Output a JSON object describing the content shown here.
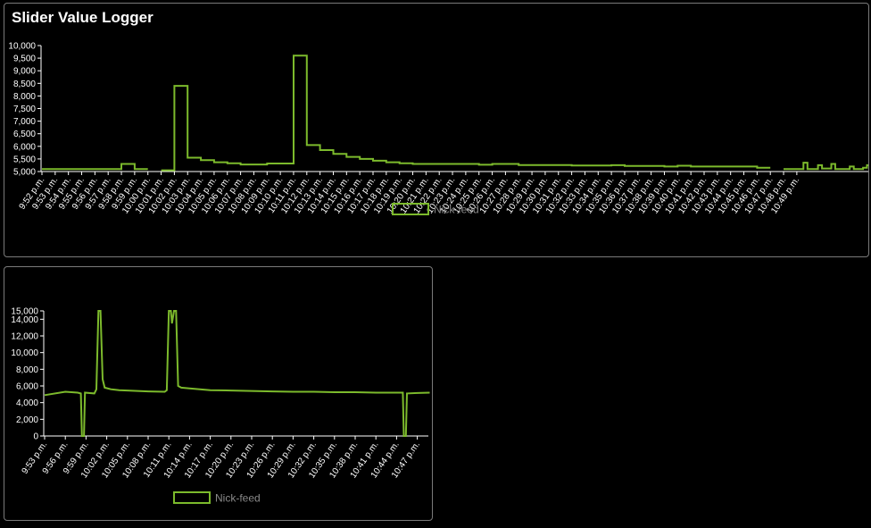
{
  "app_title": "Slider Value Logger",
  "colors": {
    "series": "#7cba2c",
    "axis": "#ffffff",
    "background": "#000000",
    "border": "#7a7a7a",
    "legend_text": "#8a8a8a"
  },
  "chart_data": [
    {
      "type": "line",
      "step": true,
      "legend_position": "bottom",
      "grid": false,
      "ylim": [
        5000,
        10000
      ],
      "yticks": [
        "5,000",
        "5,500",
        "6,000",
        "6,500",
        "7,000",
        "7,500",
        "8,000",
        "8,500",
        "9,000",
        "9,500",
        "10,000"
      ],
      "xticks": [
        "9:52 p.m.",
        "9:53 p.m.",
        "9:54 p.m.",
        "9:55 p.m.",
        "9:56 p.m.",
        "9:57 p.m.",
        "9:58 p.m.",
        "9:59 p.m.",
        "10:00 p.m.",
        "10:01 p.m.",
        "10:02 p.m.",
        "10:03 p.m.",
        "10:04 p.m.",
        "10:05 p.m.",
        "10:06 p.m.",
        "10:07 p.m.",
        "10:08 p.m.",
        "10:09 p.m.",
        "10:10 p.m.",
        "10:11 p.m.",
        "10:12 p.m.",
        "10:13 p.m.",
        "10:14 p.m.",
        "10:15 p.m.",
        "10:16 p.m.",
        "10:17 p.m.",
        "10:18 p.m.",
        "10:19 p.m.",
        "10:20 p.m.",
        "10:21 p.m.",
        "10:22 p.m.",
        "10:23 p.m.",
        "10:24 p.m.",
        "10:25 p.m.",
        "10:26 p.m.",
        "10:27 p.m.",
        "10:28 p.m.",
        "10:29 p.m.",
        "10:30 p.m.",
        "10:31 p.m.",
        "10:32 p.m.",
        "10:33 p.m.",
        "10:34 p.m.",
        "10:35 p.m.",
        "10:36 p.m.",
        "10:37 p.m.",
        "10:38 p.m.",
        "10:39 p.m.",
        "10:40 p.m.",
        "10:41 p.m.",
        "10:42 p.m.",
        "10:43 p.m.",
        "10:44 p.m.",
        "10:45 p.m.",
        "10:46 p.m.",
        "10:47 p.m.",
        "10:48 p.m.",
        "10:49 p.m."
      ],
      "series": [
        {
          "name": "Nick-feed",
          "points": [
            [
              0,
              5100
            ],
            [
              6,
              5100
            ],
            [
              6,
              5300
            ],
            [
              7,
              5300
            ],
            [
              7,
              5100
            ],
            [
              8,
              5100
            ],
            [
              8,
              null
            ],
            [
              9,
              null
            ],
            [
              9,
              5050
            ],
            [
              10,
              5050
            ],
            [
              10,
              8400
            ],
            [
              11,
              8400
            ],
            [
              11,
              5550
            ],
            [
              12,
              5550
            ],
            [
              12,
              5450
            ],
            [
              13,
              5450
            ],
            [
              13,
              5370
            ],
            [
              14,
              5370
            ],
            [
              14,
              5330
            ],
            [
              15,
              5330
            ],
            [
              15,
              5280
            ],
            [
              17,
              5280
            ],
            [
              17,
              5320
            ],
            [
              19,
              5320
            ],
            [
              19,
              9600
            ],
            [
              20,
              9600
            ],
            [
              20,
              6050
            ],
            [
              21,
              6050
            ],
            [
              21,
              5850
            ],
            [
              22,
              5850
            ],
            [
              22,
              5700
            ],
            [
              23,
              5700
            ],
            [
              23,
              5580
            ],
            [
              24,
              5580
            ],
            [
              24,
              5500
            ],
            [
              25,
              5500
            ],
            [
              25,
              5430
            ],
            [
              26,
              5430
            ],
            [
              26,
              5370
            ],
            [
              27,
              5370
            ],
            [
              27,
              5330
            ],
            [
              28,
              5330
            ],
            [
              28,
              5300
            ],
            [
              33,
              5300
            ],
            [
              33,
              5270
            ],
            [
              34,
              5270
            ],
            [
              34,
              5300
            ],
            [
              36,
              5300
            ],
            [
              36,
              5260
            ],
            [
              40,
              5260
            ],
            [
              40,
              5240
            ],
            [
              43,
              5240
            ],
            [
              43,
              5250
            ],
            [
              44,
              5250
            ],
            [
              44,
              5220
            ],
            [
              47,
              5220
            ],
            [
              47,
              5200
            ],
            [
              48,
              5200
            ],
            [
              48,
              5230
            ],
            [
              49,
              5230
            ],
            [
              49,
              5200
            ],
            [
              54,
              5200
            ],
            [
              54,
              5150
            ],
            [
              55,
              5150
            ],
            [
              55,
              null
            ],
            [
              56,
              null
            ],
            [
              56,
              5100
            ],
            [
              57.5,
              5100
            ],
            [
              57.5,
              5350
            ],
            [
              57.8,
              5350
            ],
            [
              57.8,
              5100
            ],
            [
              58.6,
              5100
            ],
            [
              58.6,
              5250
            ],
            [
              58.9,
              5250
            ],
            [
              58.9,
              5120
            ],
            [
              59.6,
              5120
            ],
            [
              59.6,
              5300
            ],
            [
              59.9,
              5300
            ],
            [
              59.9,
              5100
            ],
            [
              61,
              5100
            ],
            [
              61,
              5200
            ],
            [
              61.3,
              5200
            ],
            [
              61.3,
              5100
            ],
            [
              62,
              5100
            ],
            [
              62,
              5150
            ],
            [
              62.3,
              5150
            ],
            [
              62.3,
              5250
            ],
            [
              63,
              5250
            ]
          ]
        }
      ]
    },
    {
      "type": "line",
      "legend_position": "bottom",
      "grid": false,
      "ylim": [
        0,
        15000
      ],
      "yticks": [
        "0",
        "2,000",
        "4,000",
        "6,000",
        "8,000",
        "10,000",
        "12,000",
        "14,000",
        "15,000"
      ],
      "xticks": [
        "9:53 p.m.",
        "9:56 p.m.",
        "9:59 p.m.",
        "10:02 p.m.",
        "10:05 p.m.",
        "10:08 p.m.",
        "10:11 p.m.",
        "10:14 p.m.",
        "10:17 p.m.",
        "10:20 p.m.",
        "10:23 p.m.",
        "10:26 p.m.",
        "10:29 p.m.",
        "10:32 p.m.",
        "10:35 p.m.",
        "10:38 p.m.",
        "10:41 p.m.",
        "10:44 p.m.",
        "10:47 p.m."
      ],
      "series": [
        {
          "name": "Nick-feed",
          "points": [
            [
              0,
              4900
            ],
            [
              1,
              5300
            ],
            [
              1.6,
              5200
            ],
            [
              1.75,
              5100
            ],
            [
              1.8,
              0
            ],
            [
              1.9,
              0
            ],
            [
              1.95,
              5200
            ],
            [
              2.4,
              5100
            ],
            [
              2.5,
              5600
            ],
            [
              2.6,
              15000
            ],
            [
              2.7,
              15000
            ],
            [
              2.8,
              6800
            ],
            [
              2.9,
              5800
            ],
            [
              3.2,
              5600
            ],
            [
              3.6,
              5500
            ],
            [
              4,
              5450
            ],
            [
              4.5,
              5400
            ],
            [
              5,
              5350
            ],
            [
              5.8,
              5300
            ],
            [
              5.9,
              5500
            ],
            [
              6.0,
              15000
            ],
            [
              6.1,
              15000
            ],
            [
              6.15,
              13500
            ],
            [
              6.25,
              15000
            ],
            [
              6.35,
              15000
            ],
            [
              6.45,
              6000
            ],
            [
              6.6,
              5800
            ],
            [
              7,
              5700
            ],
            [
              7.5,
              5600
            ],
            [
              8,
              5500
            ],
            [
              9,
              5450
            ],
            [
              10,
              5400
            ],
            [
              11,
              5350
            ],
            [
              12,
              5300
            ],
            [
              13,
              5300
            ],
            [
              14,
              5250
            ],
            [
              15,
              5250
            ],
            [
              16,
              5200
            ],
            [
              17,
              5200
            ],
            [
              17.3,
              5200
            ],
            [
              17.35,
              0
            ],
            [
              17.45,
              0
            ],
            [
              17.5,
              5100
            ],
            [
              18,
              5150
            ],
            [
              18.6,
              5200
            ]
          ]
        }
      ]
    }
  ]
}
